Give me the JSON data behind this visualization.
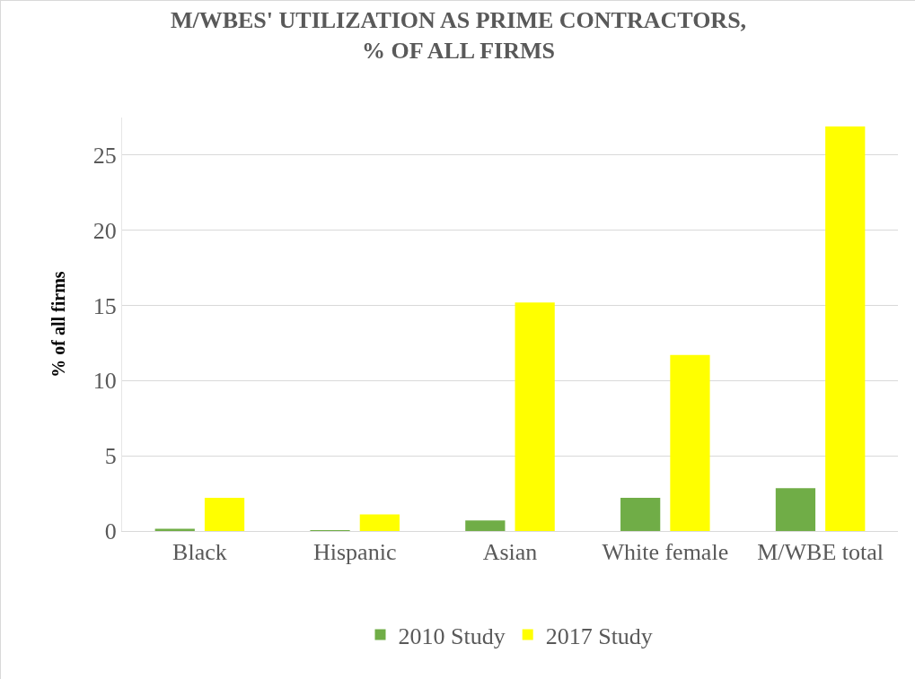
{
  "chart_data": {
    "type": "bar",
    "title": "M/WBES' UTILIZATION AS PRIME CONTRACTORS,\n% OF ALL FIRMS",
    "ylabel": "% of all firms",
    "categories": [
      "Black",
      "Hispanic",
      "Asian",
      "White female",
      "M/WBE total"
    ],
    "series": [
      {
        "name": "2010 Study",
        "color": "#70ad47",
        "values": [
          0.15,
          0.05,
          0.7,
          2.2,
          2.85
        ]
      },
      {
        "name": "2017 Study",
        "color": "#ffff00",
        "values": [
          2.2,
          1.1,
          15.2,
          11.7,
          26.9
        ]
      }
    ],
    "ylim": [
      0,
      27.5
    ],
    "yticks": [
      0,
      5,
      10,
      15,
      20,
      25
    ],
    "grid": "y",
    "legend": "bottom"
  }
}
